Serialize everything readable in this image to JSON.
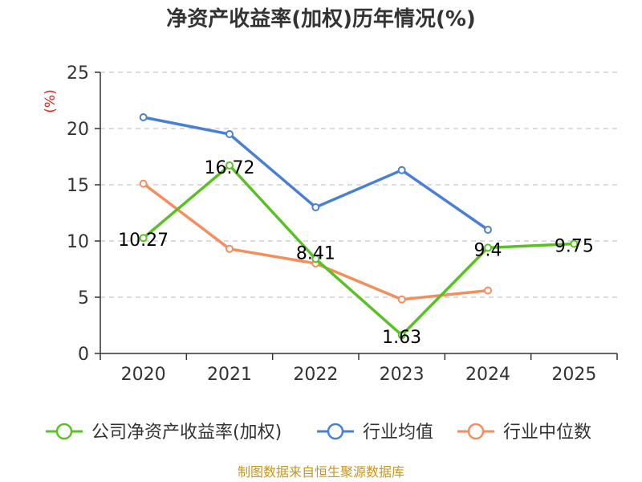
{
  "chart_data": {
    "type": "line",
    "title": "净资产收益率(加权)历年情况(%)",
    "ylabel": "(%)",
    "xlabel": "",
    "categories": [
      "2020",
      "2021",
      "2022",
      "2023",
      "2024",
      "2025"
    ],
    "ylim": [
      0,
      25
    ],
    "yticks": [
      0,
      5,
      10,
      15,
      20,
      25
    ],
    "grid": true,
    "legend_position": "bottom",
    "series": [
      {
        "name": "公司净资产收益率(加权)",
        "color": "#5ac125",
        "values": [
          10.27,
          16.72,
          8.41,
          1.63,
          9.4,
          9.75
        ],
        "labels": [
          "10.27",
          "16.72",
          "8.41",
          "1.63",
          "9.4",
          "9.75"
        ]
      },
      {
        "name": "行业均值",
        "color": "#4a7fd6",
        "values": [
          21.0,
          19.5,
          13.0,
          16.3,
          11.0,
          null
        ]
      },
      {
        "name": "行业中位数",
        "color": "#f48e5c",
        "values": [
          15.1,
          9.3,
          8.0,
          4.8,
          5.6,
          null
        ]
      }
    ]
  },
  "footer": {
    "source": "制图数据来自恒生聚源数据库"
  }
}
